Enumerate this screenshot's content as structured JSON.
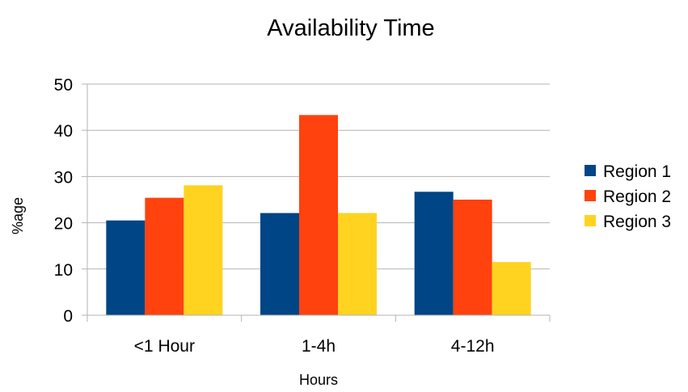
{
  "chart_data": {
    "type": "bar",
    "title": "Availability Time",
    "xlabel": "Hours",
    "ylabel": "%age",
    "categories": [
      "<1 Hour",
      "1-4h",
      "4-12h"
    ],
    "series": [
      {
        "name": "Region 1",
        "color": "#004586",
        "values": [
          20.5,
          22.1,
          26.7
        ]
      },
      {
        "name": "Region 2",
        "color": "#ff420e",
        "values": [
          25.4,
          43.3,
          25.0
        ]
      },
      {
        "name": "Region 3",
        "color": "#ffd320",
        "values": [
          28.1,
          22.1,
          11.5
        ]
      }
    ],
    "ylim": [
      0,
      50
    ],
    "yticks": [
      0,
      10,
      20,
      30,
      40,
      50
    ],
    "grid": true,
    "legend_position": "right"
  }
}
